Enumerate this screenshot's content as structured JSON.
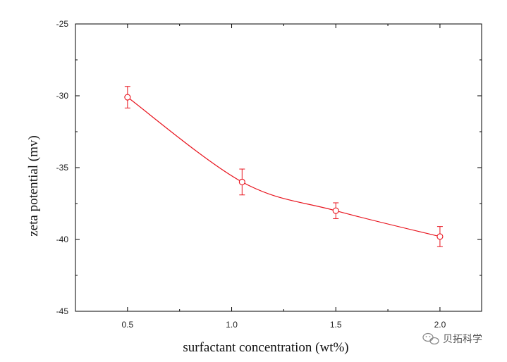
{
  "chart_data": {
    "type": "scatter",
    "title": "",
    "xlabel": "surfactant concentration (wt%)",
    "ylabel": "zeta potential (mv)",
    "xlim": [
      0.25,
      2.2
    ],
    "ylim": [
      -45,
      -25
    ],
    "x_ticks": [
      0.5,
      1.0,
      1.5,
      2.0
    ],
    "x_tick_labels": [
      "0.5",
      "1.0",
      "1.5",
      "2.0"
    ],
    "y_ticks": [
      -25,
      -30,
      -35,
      -40,
      -45
    ],
    "y_tick_labels": [
      "-25",
      "-30",
      "-35",
      "-40",
      "-45"
    ],
    "grid": false,
    "series": [
      {
        "name": "zeta potential",
        "color": "#e8141e",
        "marker": "open-circle",
        "fit_line": "smooth",
        "x": [
          0.5,
          1.05,
          1.5,
          2.0
        ],
        "y": [
          -30.1,
          -36.0,
          -38.0,
          -39.8
        ],
        "error": [
          0.75,
          0.9,
          0.55,
          0.7
        ]
      }
    ]
  },
  "watermark": {
    "text": "贝拓科学"
  },
  "colors": {
    "series": "#e8141e",
    "axis": "#000000"
  }
}
